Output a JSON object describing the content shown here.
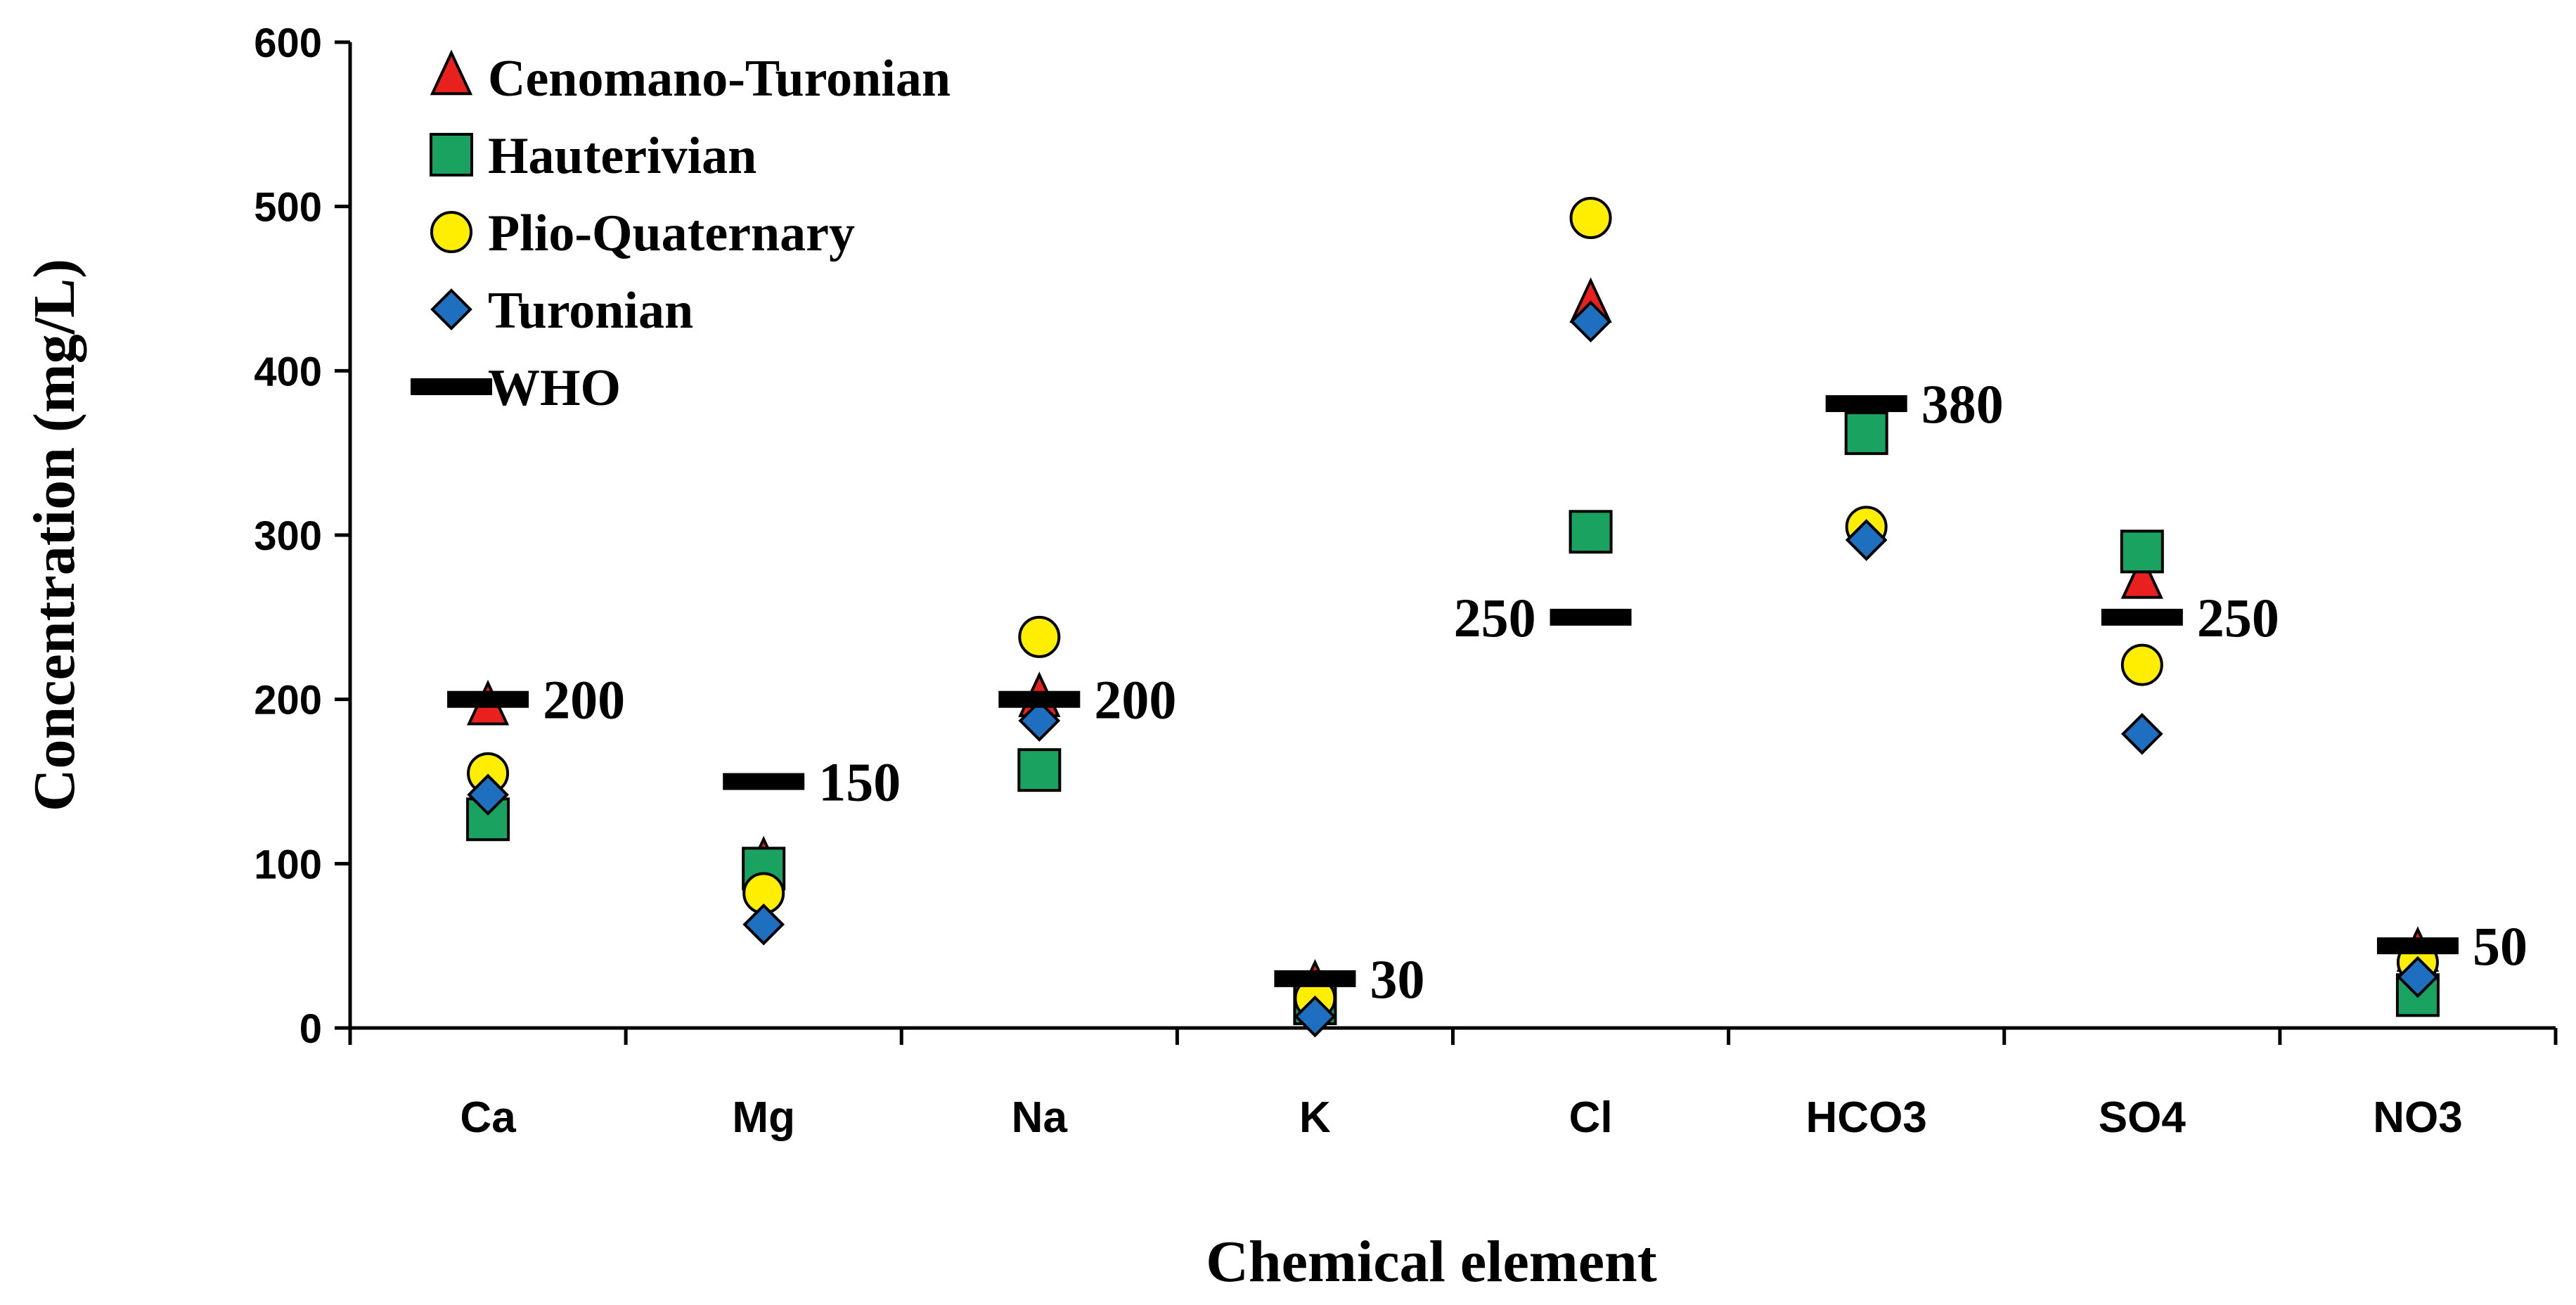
{
  "chart_data": {
    "type": "scatter",
    "title": "",
    "xlabel": "Chemical element",
    "ylabel": "Concentration (mg/L)",
    "ylim": [
      0,
      600
    ],
    "yticks": [
      0,
      100,
      200,
      300,
      400,
      500,
      600
    ],
    "categories": [
      "Ca",
      "Mg",
      "Na",
      "K",
      "Cl",
      "HCO3",
      "SO4",
      "NO3"
    ],
    "series": [
      {
        "name": "Cenomano-Turonian",
        "marker": "triangle",
        "color": "#e8201e",
        "values": [
          195,
          100,
          200,
          25,
          440,
          360,
          272,
          45
        ]
      },
      {
        "name": "Hauterivian",
        "marker": "square",
        "color": "#1aa260",
        "values": [
          127,
          97,
          157,
          15,
          302,
          362,
          290,
          20
        ]
      },
      {
        "name": "Plio-Quaternary",
        "marker": "circle",
        "color": "#ffee00",
        "values": [
          155,
          82,
          238,
          18,
          493,
          305,
          221,
          40
        ]
      },
      {
        "name": "Turonian",
        "marker": "diamond",
        "color": "#1e6fc0",
        "values": [
          142,
          63,
          187,
          7,
          430,
          297,
          179,
          31
        ]
      },
      {
        "name": "WHO",
        "marker": "dash",
        "color": "#000000",
        "values": [
          200,
          150,
          200,
          30,
          250,
          380,
          250,
          50
        ]
      }
    ],
    "who_labels": [
      "200",
      "150",
      "200",
      "30",
      "250",
      "380",
      "250",
      "50"
    ],
    "legend_position": "top-left",
    "grid": false
  }
}
